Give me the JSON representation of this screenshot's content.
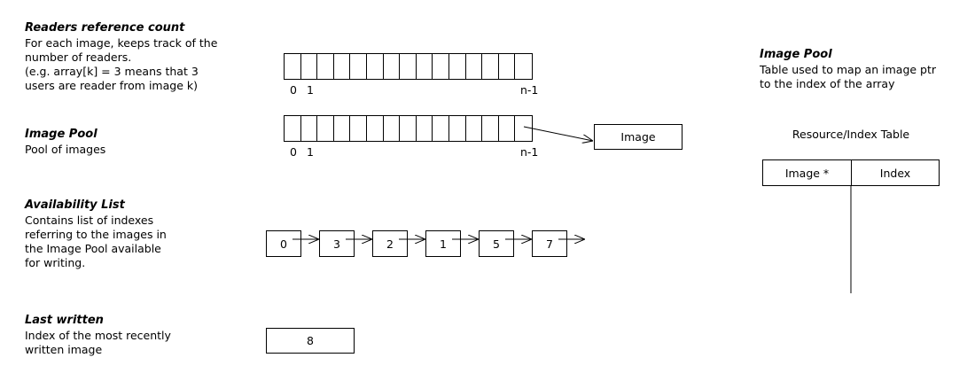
{
  "readers": {
    "title": "Readers reference count",
    "desc": [
      "For each image, keeps track of the",
      "number of readers.",
      "(e.g. array[k] = 3 means that 3",
      "users are reader from image k)"
    ],
    "index_start_0": "0",
    "index_start_1": "1",
    "index_end": "n-1"
  },
  "image_pool": {
    "title": "Image Pool",
    "desc": [
      "Pool of images"
    ],
    "index_start_0": "0",
    "index_start_1": "1",
    "index_end": "n-1",
    "target_label": "Image"
  },
  "availability": {
    "title": "Availability List",
    "desc": [
      "Contains list of indexes",
      "referring to the images in",
      "the Image Pool available",
      "for writing."
    ],
    "nodes": [
      "0",
      "3",
      "2",
      "1",
      "5",
      "7"
    ]
  },
  "last_written": {
    "title": "Last written",
    "desc": [
      "Index of the most recently",
      "written image"
    ],
    "value": "8"
  },
  "table_section": {
    "title": "Image Pool",
    "desc": [
      "Table used to map an image ptr",
      "to the index of the array"
    ],
    "table_title": "Resource/Index Table",
    "col1": "Image *",
    "col2": "Index"
  }
}
